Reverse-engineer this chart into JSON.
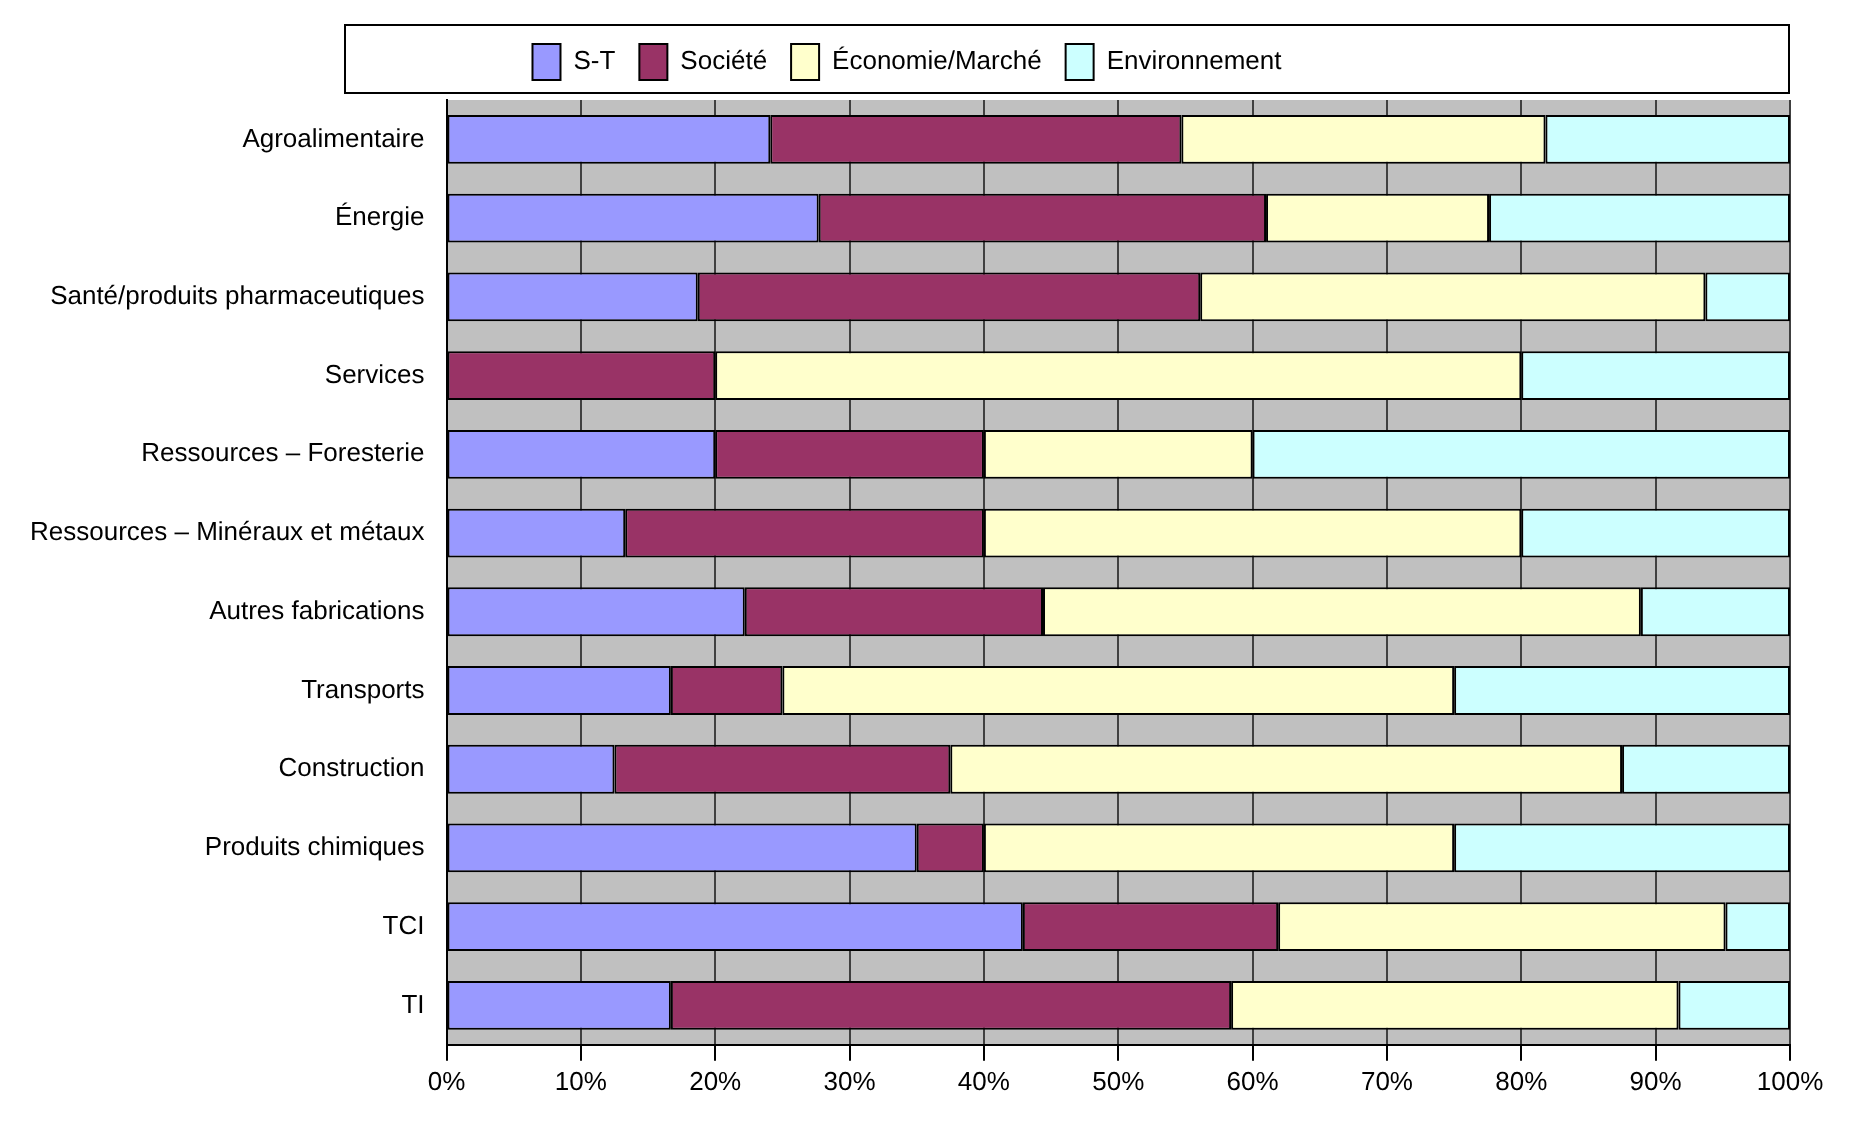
{
  "chart_data": {
    "type": "bar",
    "orientation": "horizontal",
    "stacked": true,
    "categories": [
      "Agroalimentaire",
      "Énergie",
      "Santé/produits pharmaceutiques",
      "Services",
      "Ressources – Foresterie",
      "Ressources – Minéraux et métaux",
      "Autres fabrications",
      "Transports",
      "Construction",
      "Produits chimiques",
      "TCI",
      "TI"
    ],
    "series": [
      {
        "name": "S-T",
        "color": "#9999ff",
        "values": [
          24.1,
          27.7,
          18.7,
          0,
          20,
          13.3,
          22.2,
          16.7,
          12.5,
          35,
          42.9,
          16.7
        ]
      },
      {
        "name": "Société",
        "color": "#993366",
        "values": [
          30.6,
          33.3,
          37.4,
          20,
          20,
          26.7,
          22.2,
          8.3,
          25,
          5,
          19,
          41.7
        ]
      },
      {
        "name": "Économie/Marché",
        "color": "#ffffcc",
        "values": [
          27.1,
          16.6,
          37.6,
          60,
          20,
          40,
          44.5,
          50,
          50,
          35,
          33.3,
          33.3
        ]
      },
      {
        "name": "Environnement",
        "color": "#ccffff",
        "values": [
          18.2,
          22.4,
          6.3,
          20,
          40,
          20,
          11.1,
          25,
          12.5,
          25,
          4.8,
          8.3
        ]
      }
    ],
    "xlim": [
      0,
      100
    ],
    "xticks": [
      {
        "value": 0,
        "label": "0%"
      },
      {
        "value": 10,
        "label": "10%"
      },
      {
        "value": 20,
        "label": "20%"
      },
      {
        "value": 30,
        "label": "30%"
      },
      {
        "value": 40,
        "label": "40%"
      },
      {
        "value": 50,
        "label": "50%"
      },
      {
        "value": 60,
        "label": "60%"
      },
      {
        "value": 70,
        "label": "70%"
      },
      {
        "value": 80,
        "label": "80%"
      },
      {
        "value": 90,
        "label": "90%"
      },
      {
        "value": 100,
        "label": "100%"
      }
    ],
    "grid": "x",
    "legend": "top"
  }
}
